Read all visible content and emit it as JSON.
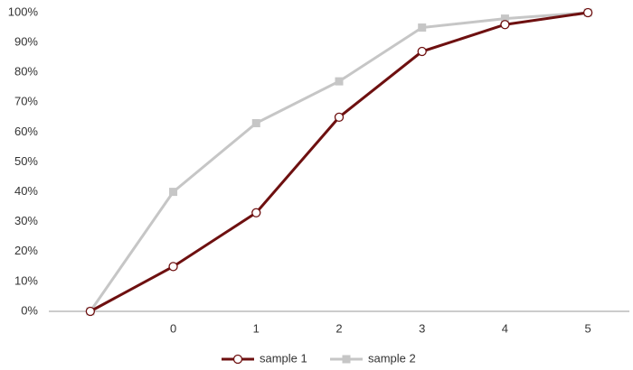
{
  "chart_data": {
    "type": "line",
    "categories": [
      null,
      "0",
      "1",
      "2",
      "3",
      "4",
      "5"
    ],
    "series": [
      {
        "name": "sample 1",
        "color": "#6e1010",
        "marker": "circle",
        "values": [
          0,
          15,
          33,
          65,
          87,
          96,
          100
        ]
      },
      {
        "name": "sample 2",
        "color": "#c6c6c6",
        "marker": "square",
        "values": [
          0,
          40,
          63,
          77,
          95,
          98,
          100
        ]
      }
    ],
    "ylim": [
      0,
      100
    ],
    "yticks": [
      {
        "value": 0,
        "label": "0%"
      },
      {
        "value": 10,
        "label": "10%"
      },
      {
        "value": 20,
        "label": "20%"
      },
      {
        "value": 30,
        "label": "30%"
      },
      {
        "value": 40,
        "label": "40%"
      },
      {
        "value": 50,
        "label": "50%"
      },
      {
        "value": 60,
        "label": "60%"
      },
      {
        "value": 70,
        "label": "70%"
      },
      {
        "value": 80,
        "label": "80%"
      },
      {
        "value": 90,
        "label": "90%"
      },
      {
        "value": 100,
        "label": "100%"
      }
    ],
    "grid": false,
    "legend": "bottom"
  }
}
